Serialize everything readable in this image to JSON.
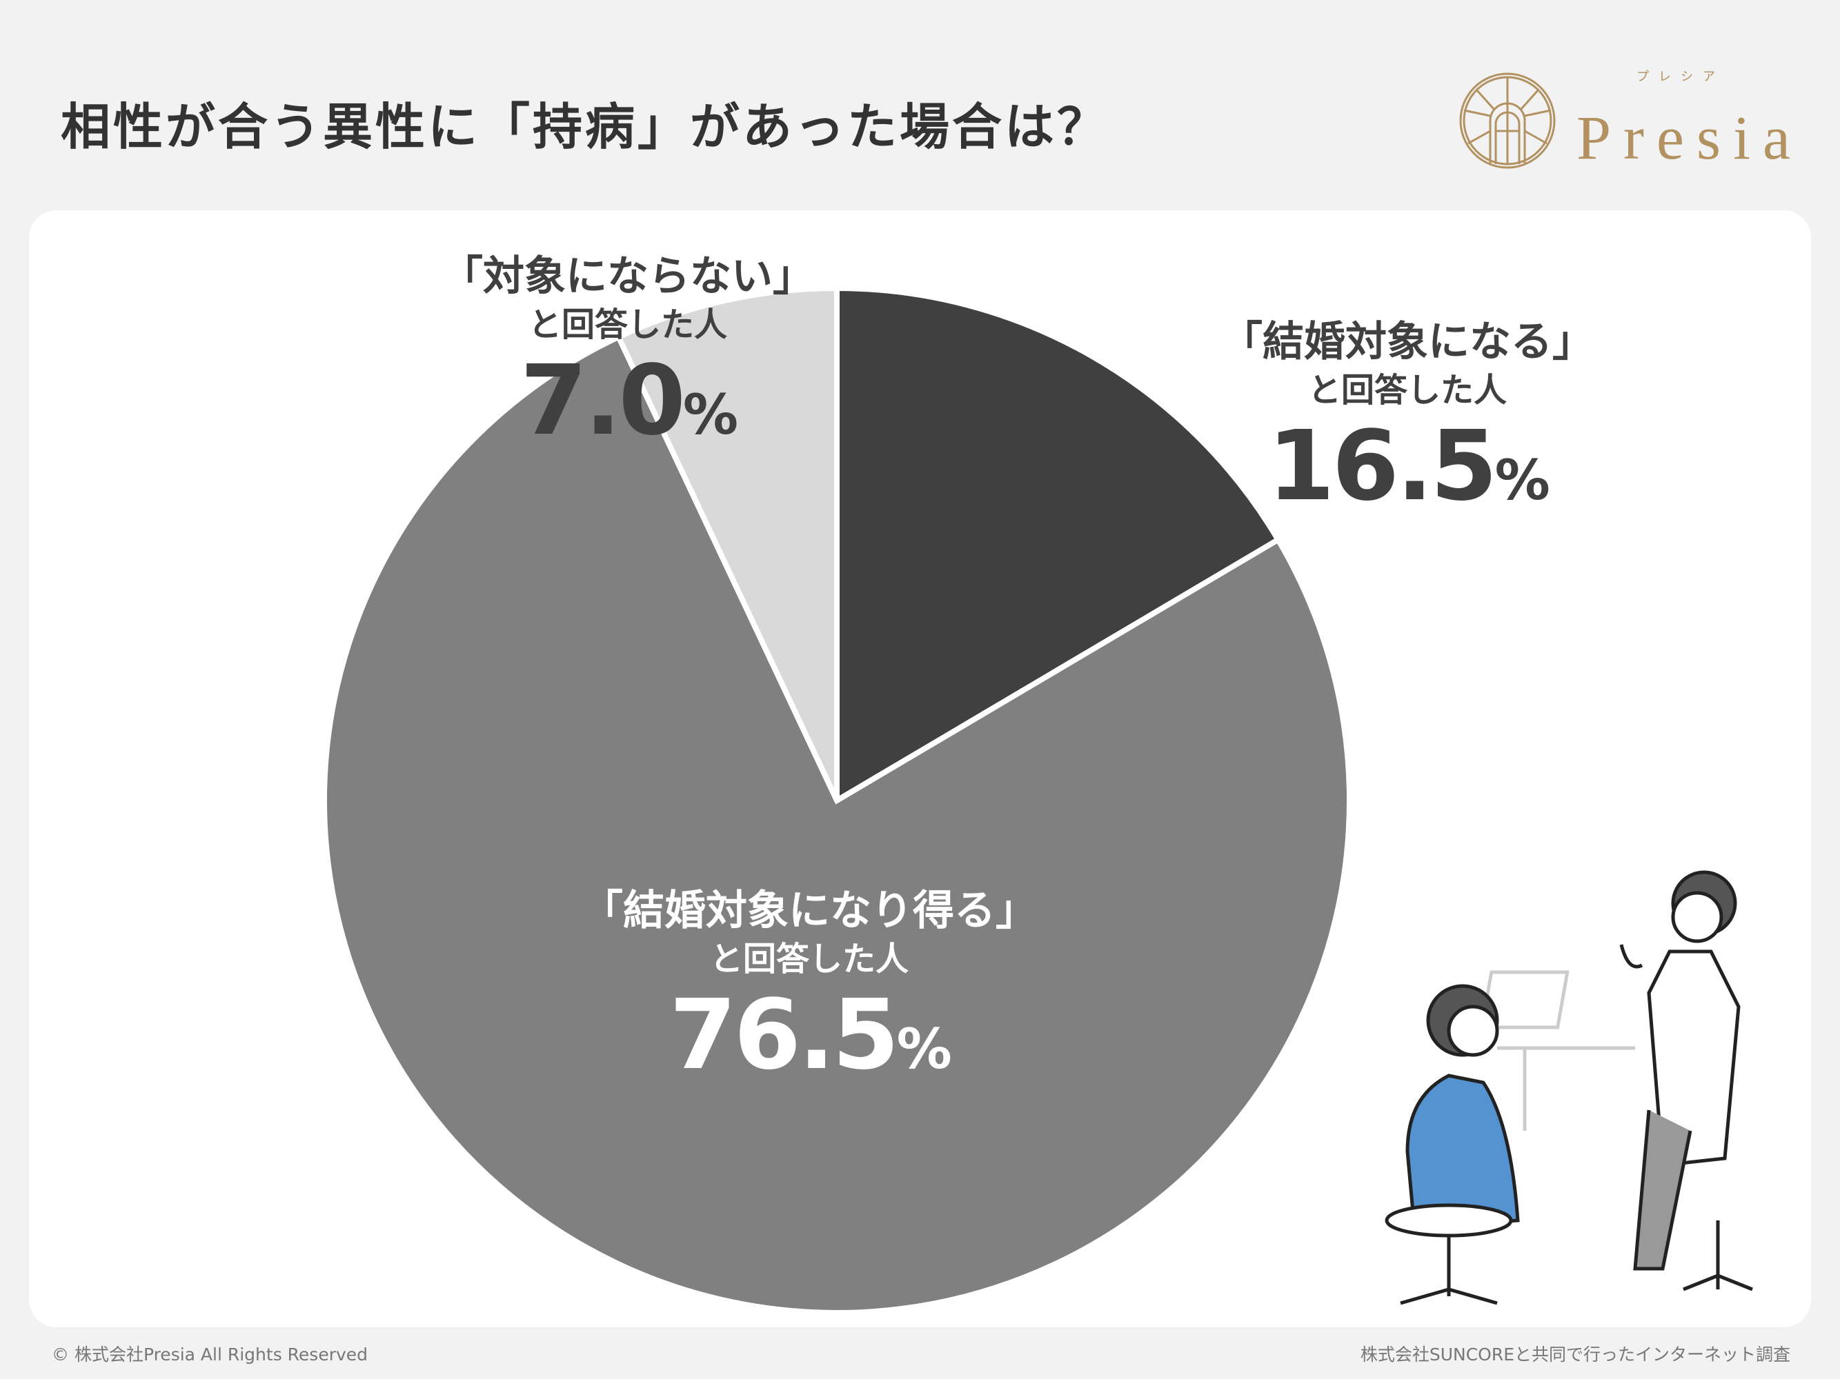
{
  "title": "相性が合う異性に「持病」があった場合は？",
  "logo": {
    "text": "Presia",
    "kana": "プレシア",
    "color": "#b39262"
  },
  "chart_data": {
    "type": "pie",
    "start": "top",
    "direction": "clockwise",
    "slices": [
      {
        "label_top": "「結婚対象になる」",
        "label_sub": "と回答した人",
        "value": 16.5,
        "color": "#404040",
        "text_color": "#404040"
      },
      {
        "label_top": "「結婚対象になり得る」",
        "label_sub": "と回答した人",
        "value": 76.5,
        "color": "#808080",
        "text_color": "#ffffff"
      },
      {
        "label_top": "「対象にならない」",
        "label_sub": "と回答した人",
        "value": 7.0,
        "color": "#d9d9d9",
        "text_color": "#404040"
      }
    ],
    "unit": "%"
  },
  "footer": {
    "left": "© 株式会社Presia All Rights Reserved",
    "right": "株式会社SUNCOREと共同で行ったインターネット調査"
  }
}
